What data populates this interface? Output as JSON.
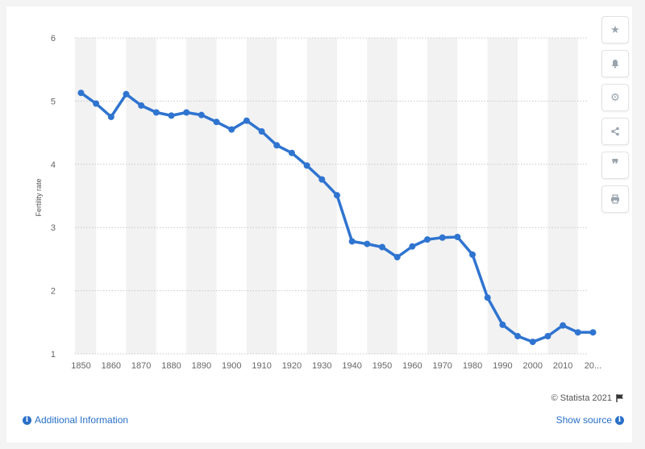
{
  "chart_data": {
    "type": "line",
    "ylabel": "Fertility rate",
    "xlabel": "",
    "ylim": [
      1,
      6
    ],
    "yticks": [
      "1",
      "2",
      "3",
      "4",
      "5",
      "6"
    ],
    "xlim": [
      1848,
      2018
    ],
    "xtick_values": [
      1850,
      1860,
      1870,
      1880,
      1890,
      1900,
      1910,
      1920,
      1930,
      1940,
      1950,
      1960,
      1970,
      1980,
      1990,
      2000,
      2010,
      2020
    ],
    "xticks": [
      "1850",
      "1860",
      "1870",
      "1880",
      "1890",
      "1900",
      "1910",
      "1920",
      "1930",
      "1940",
      "1950",
      "1960",
      "1970",
      "1980",
      "1990",
      "2000",
      "2010",
      "20..."
    ],
    "grid": true,
    "series_color": "#2f74d0",
    "series": [
      {
        "x": [
          1850,
          1855,
          1860,
          1865,
          1870,
          1875,
          1880,
          1885,
          1890,
          1895,
          1900,
          1905,
          1910,
          1915,
          1920,
          1925,
          1930,
          1935,
          1940,
          1945,
          1950,
          1955,
          1960,
          1965,
          1970,
          1975,
          1980,
          1985,
          1990,
          1995,
          2000,
          2005,
          2010,
          2015,
          2020
        ],
        "values": [
          5.13,
          4.96,
          4.75,
          5.11,
          4.93,
          4.82,
          4.77,
          4.82,
          4.78,
          4.67,
          4.55,
          4.69,
          4.52,
          4.3,
          4.18,
          3.98,
          3.76,
          3.51,
          2.78,
          2.74,
          2.69,
          2.53,
          2.7,
          2.81,
          2.84,
          2.85,
          2.57,
          1.89,
          1.46,
          1.28,
          1.19,
          1.28,
          1.45,
          1.34,
          1.34
        ]
      }
    ]
  },
  "toolbar": {
    "icons": [
      "star-icon",
      "bell-icon",
      "gear-icon",
      "share-icon",
      "quote-icon",
      "print-icon"
    ]
  },
  "footer": {
    "credit": "© Statista 2021",
    "additional_info": "Additional Information",
    "show_source": "Show source"
  }
}
